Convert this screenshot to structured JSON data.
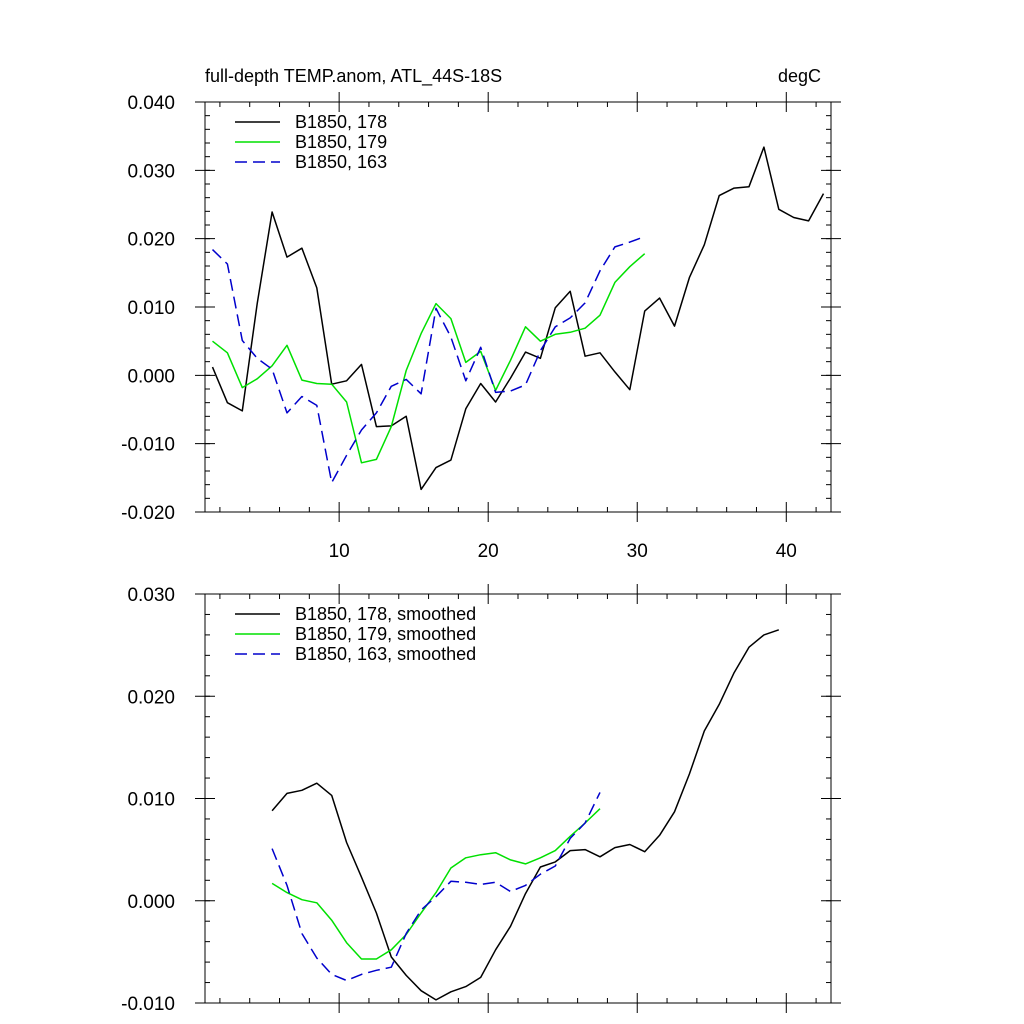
{
  "chart_data": [
    {
      "type": "line",
      "title": "full-depth TEMP.anom, ATL_44S-18S",
      "units": "degC",
      "xlim": [
        1,
        43
      ],
      "ylim": [
        -0.02,
        0.04
      ],
      "x_ticks": [
        10,
        20,
        30,
        40
      ],
      "x_tick_labels": [
        "10",
        "20",
        "30",
        "40"
      ],
      "y_ticks": [
        -0.02,
        -0.01,
        0.0,
        0.01,
        0.02,
        0.03,
        0.04
      ],
      "y_tick_labels": [
        "-0.020",
        "-0.010",
        "0.000",
        "0.010",
        "0.020",
        "0.030",
        "0.040"
      ],
      "legend_position": "top-left",
      "series": [
        {
          "name": "B1850, 178",
          "color": "#000000",
          "dash": "solid",
          "x": [
            1.5,
            2.5,
            3.5,
            4.5,
            5.5,
            6.5,
            7.5,
            8.5,
            9.5,
            10.5,
            11.5,
            12.5,
            13.5,
            14.5,
            15.5,
            16.5,
            17.5,
            18.5,
            19.5,
            20.5,
            21.5,
            22.5,
            23.5,
            24.5,
            25.5,
            26.5,
            27.5,
            28.5,
            29.5,
            30.5,
            31.5,
            32.5,
            33.5,
            34.5,
            35.5,
            36.5,
            37.5,
            38.5,
            39.5,
            40.5,
            41.5,
            42.5
          ],
          "values": [
            0.0012,
            -0.004,
            -0.0052,
            0.0105,
            0.0239,
            0.0173,
            0.0186,
            0.0128,
            -0.0013,
            -0.0008,
            0.0016,
            -0.0075,
            -0.0074,
            -0.006,
            -0.0167,
            -0.0135,
            -0.0124,
            -0.0049,
            -0.0012,
            -0.0039,
            -0.0004,
            0.0034,
            0.0025,
            0.0099,
            0.0123,
            0.0028,
            0.0033,
            0.0005,
            -0.0021,
            0.0094,
            0.0113,
            0.0072,
            0.0143,
            0.0191,
            0.0263,
            0.0274,
            0.0276,
            0.0334,
            0.0243,
            0.0231,
            0.0226,
            0.0266
          ]
        },
        {
          "name": "B1850, 179",
          "color": "#00e000",
          "dash": "solid",
          "x": [
            1.5,
            2.5,
            3.5,
            4.5,
            5.5,
            6.5,
            7.5,
            8.5,
            9.5,
            10.5,
            11.5,
            12.5,
            13.5,
            14.5,
            15.5,
            16.5,
            17.5,
            18.5,
            19.5,
            20.5,
            21.5,
            22.5,
            23.5,
            24.5,
            25.5,
            26.5,
            27.5,
            28.5,
            29.5,
            30.5
          ],
          "values": [
            0.005,
            0.0033,
            -0.0018,
            -0.0005,
            0.0014,
            0.0044,
            -0.0007,
            -0.0012,
            -0.0013,
            -0.0039,
            -0.0128,
            -0.0123,
            -0.0075,
            0.0007,
            0.0061,
            0.0105,
            0.0083,
            0.0019,
            0.0035,
            -0.0022,
            0.0022,
            0.0071,
            0.005,
            0.006,
            0.0063,
            0.0069,
            0.0088,
            0.0136,
            0.0159,
            0.0178
          ]
        },
        {
          "name": "B1850, 163",
          "color": "#0000cc",
          "dash": "dashed",
          "x": [
            1.5,
            2.5,
            3.5,
            4.5,
            5.5,
            6.5,
            7.5,
            8.5,
            9.5,
            10.5,
            11.5,
            12.5,
            13.5,
            14.5,
            15.5,
            16.5,
            17.5,
            18.5,
            19.5,
            20.5,
            21.5,
            22.5,
            23.5,
            24.5,
            25.5,
            26.5,
            27.5,
            28.5,
            29.5,
            30.5
          ],
          "values": [
            0.0184,
            0.0163,
            0.0051,
            0.0025,
            0.0009,
            -0.0055,
            -0.0031,
            -0.0044,
            -0.0157,
            -0.0117,
            -0.008,
            -0.0055,
            -0.0016,
            -0.0006,
            -0.0027,
            0.0098,
            0.0056,
            -0.0008,
            0.0041,
            -0.0025,
            -0.0023,
            -0.0014,
            0.0036,
            0.0071,
            0.0084,
            0.0106,
            0.0153,
            0.0188,
            0.0195,
            0.0203
          ]
        }
      ]
    },
    {
      "type": "line",
      "xlim": [
        1,
        43
      ],
      "ylim": [
        -0.01,
        0.03
      ],
      "x_ticks": [
        10,
        20,
        30,
        40
      ],
      "x_tick_labels": [],
      "y_ticks": [
        -0.01,
        0.0,
        0.01,
        0.02,
        0.03
      ],
      "y_tick_labels": [
        "-0.010",
        "0.000",
        "0.010",
        "0.020",
        "0.030"
      ],
      "legend_position": "top-left",
      "series": [
        {
          "name": "B1850, 178, smoothed",
          "color": "#000000",
          "dash": "solid",
          "x": [
            5.5,
            6.5,
            7.5,
            8.5,
            9.5,
            10.5,
            11.5,
            12.5,
            13.5,
            14.5,
            15.5,
            16.5,
            17.5,
            18.5,
            19.5,
            20.5,
            21.5,
            22.5,
            23.5,
            24.5,
            25.5,
            26.5,
            27.5,
            28.5,
            29.5,
            30.5,
            31.5,
            32.5,
            33.5,
            34.5,
            35.5,
            36.5,
            37.5,
            38.5,
            39.5
          ],
          "values": [
            0.0088,
            0.0105,
            0.0108,
            0.0115,
            0.0103,
            0.0057,
            0.0023,
            -0.0012,
            -0.0055,
            -0.0073,
            -0.0088,
            -0.0097,
            -0.0089,
            -0.0084,
            -0.0075,
            -0.0048,
            -0.0025,
            0.0007,
            0.0033,
            0.0038,
            0.0049,
            0.005,
            0.0043,
            0.0052,
            0.0055,
            0.0048,
            0.0064,
            0.0087,
            0.0124,
            0.0166,
            0.0192,
            0.0223,
            0.0248,
            0.026,
            0.0265
          ]
        },
        {
          "name": "B1850, 179, smoothed",
          "color": "#00e000",
          "dash": "solid",
          "x": [
            5.5,
            6.5,
            7.5,
            8.5,
            9.5,
            10.5,
            11.5,
            12.5,
            13.5,
            14.5,
            15.5,
            16.5,
            17.5,
            18.5,
            19.5,
            20.5,
            21.5,
            22.5,
            23.5,
            24.5,
            25.5,
            26.5,
            27.5
          ],
          "values": [
            0.0017,
            0.0008,
            0.0001,
            -0.0002,
            -0.0019,
            -0.0041,
            -0.0057,
            -0.0057,
            -0.0048,
            -0.0033,
            -0.0012,
            0.0008,
            0.0032,
            0.0042,
            0.0045,
            0.0047,
            0.004,
            0.0036,
            0.0042,
            0.0049,
            0.0063,
            0.0076,
            0.009
          ]
        },
        {
          "name": "B1850, 163, smoothed",
          "color": "#0000cc",
          "dash": "dashed",
          "x": [
            5.5,
            6.5,
            7.5,
            8.5,
            9.5,
            10.5,
            11.5,
            12.5,
            13.5,
            14.5,
            15.5,
            16.5,
            17.5,
            18.5,
            19.5,
            20.5,
            21.5,
            22.5,
            23.5,
            24.5,
            25.5,
            26.5,
            27.5
          ],
          "values": [
            0.0051,
            0.0015,
            -0.0032,
            -0.0056,
            -0.0072,
            -0.0078,
            -0.0072,
            -0.0068,
            -0.0065,
            -0.0032,
            -0.0009,
            0.0004,
            0.0019,
            0.0018,
            0.0016,
            0.0018,
            0.0009,
            0.0015,
            0.0026,
            0.0034,
            0.0061,
            0.0076,
            0.0106
          ]
        }
      ]
    }
  ]
}
